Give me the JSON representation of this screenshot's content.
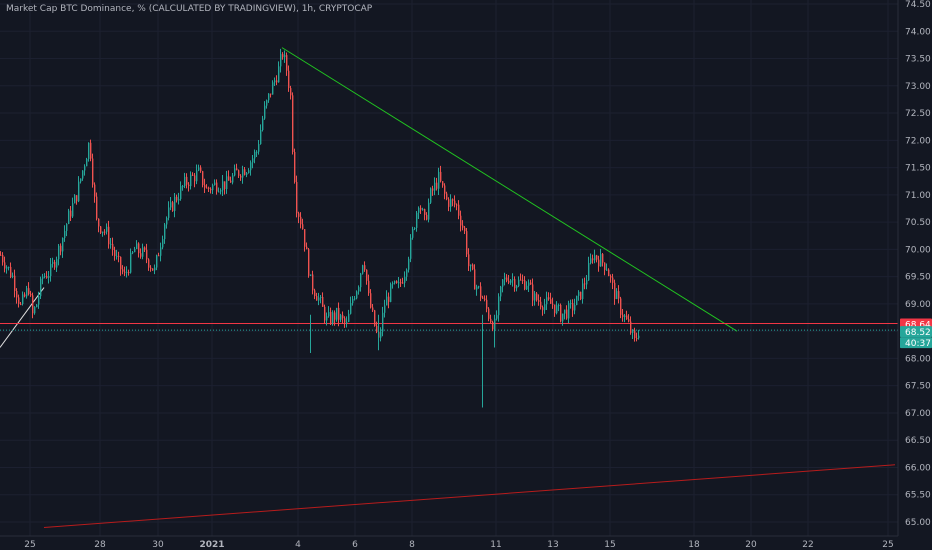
{
  "chart_data": {
    "type": "candlestick",
    "title": "Market Cap BTC Dominance, % (CALCULATED BY TRADINGVIEW), 1h, CRYPTOCAP",
    "xlabel": "",
    "ylabel": "",
    "ylim": [
      64.9,
      74.5
    ],
    "y_ticks": [
      "74.50",
      "74.00",
      "73.50",
      "73.00",
      "72.50",
      "72.00",
      "71.50",
      "71.00",
      "70.50",
      "70.00",
      "69.50",
      "69.00",
      "68.50",
      "68.00",
      "67.50",
      "67.00",
      "66.50",
      "66.00",
      "65.50",
      "65.00"
    ],
    "x_ticks": [
      "25",
      "28",
      "30",
      "2021",
      "4",
      "6",
      "8",
      "11",
      "13",
      "15",
      "18",
      "20",
      "22",
      "25"
    ],
    "grid": true,
    "price_labels": [
      {
        "text": "68.64",
        "value": 68.64,
        "color": "#f23645"
      },
      {
        "text": "68.52",
        "value": 68.52,
        "color": "#26a69a"
      },
      {
        "text": "40:37",
        "value": 68.52,
        "color": "#26a69a"
      }
    ],
    "horizontal_lines": [
      {
        "value": 68.64,
        "color": "#f23645",
        "style": "solid"
      },
      {
        "value": 68.52,
        "color": "#26a69a",
        "style": "dotted"
      }
    ],
    "trend_lines": [
      {
        "from": [
          "Jan 3",
          73.7
        ],
        "to": [
          "Jan 19",
          68.5
        ],
        "color": "#21c421"
      },
      {
        "from": [
          "Dec 25",
          64.9
        ],
        "to": [
          "Jan 25",
          66.05
        ],
        "color": "#b71c1c"
      },
      {
        "from": [
          "Dec 24",
          68.2
        ],
        "to": [
          "Dec 25",
          69.3
        ],
        "color": "#e0e0e0"
      }
    ],
    "series": [
      {
        "path_points": [
          [
            69.9,
            0
          ],
          [
            69.5,
            12
          ],
          [
            68.95,
            20
          ],
          [
            69.3,
            28
          ],
          [
            68.8,
            32
          ],
          [
            69.0,
            36
          ],
          [
            69.5,
            42
          ],
          [
            69.6,
            50
          ],
          [
            70.1,
            60
          ],
          [
            70.6,
            68
          ],
          [
            71.0,
            76
          ],
          [
            71.6,
            84
          ],
          [
            72.0,
            89
          ],
          [
            71.1,
            93
          ],
          [
            70.5,
            96
          ],
          [
            70.3,
            106
          ],
          [
            69.8,
            116
          ],
          [
            69.5,
            124
          ],
          [
            70.0,
            134
          ],
          [
            69.9,
            144
          ],
          [
            69.6,
            154
          ],
          [
            70.5,
            164
          ],
          [
            70.9,
            174
          ],
          [
            71.2,
            184
          ],
          [
            71.3,
            190
          ],
          [
            71.4,
            198
          ],
          [
            71.1,
            206
          ],
          [
            71.2,
            216
          ],
          [
            71.2,
            226
          ],
          [
            71.4,
            236
          ],
          [
            71.5,
            246
          ],
          [
            71.8,
            256
          ],
          [
            72.5,
            263
          ],
          [
            72.9,
            270
          ],
          [
            73.3,
            278
          ],
          [
            73.6,
            282
          ],
          [
            73.3,
            286
          ],
          [
            72.8,
            290
          ],
          [
            71.9,
            292
          ],
          [
            70.8,
            296
          ],
          [
            70.4,
            302
          ],
          [
            69.4,
            310
          ],
          [
            69.1,
            318
          ],
          [
            68.7,
            326
          ],
          [
            68.8,
            336
          ],
          [
            68.6,
            346
          ],
          [
            69.1,
            352
          ],
          [
            69.4,
            358
          ],
          [
            69.9,
            363
          ],
          [
            69.1,
            368
          ],
          [
            68.6,
            374
          ],
          [
            68.3,
            378
          ],
          [
            69.0,
            384
          ],
          [
            69.3,
            392
          ],
          [
            69.3,
            398
          ],
          [
            69.6,
            404
          ],
          [
            70.1,
            410
          ],
          [
            70.9,
            418
          ],
          [
            70.5,
            424
          ],
          [
            71.0,
            430
          ],
          [
            71.3,
            438
          ],
          [
            70.9,
            446
          ],
          [
            70.8,
            456
          ],
          [
            70.3,
            464
          ],
          [
            69.7,
            468
          ],
          [
            69.4,
            474
          ],
          [
            69.1,
            482
          ],
          [
            68.8,
            488
          ],
          [
            68.6,
            494
          ],
          [
            69.4,
            502
          ],
          [
            69.5,
            508
          ],
          [
            69.4,
            516
          ],
          [
            69.4,
            526
          ],
          [
            69.1,
            534
          ],
          [
            69.0,
            544
          ],
          [
            69.0,
            552
          ],
          [
            68.8,
            560
          ],
          [
            68.9,
            570
          ],
          [
            69.1,
            578
          ],
          [
            69.5,
            586
          ],
          [
            69.9,
            592
          ],
          [
            69.8,
            600
          ],
          [
            69.7,
            606
          ],
          [
            69.3,
            612
          ],
          [
            68.9,
            620
          ],
          [
            68.6,
            628
          ],
          [
            68.3,
            634
          ],
          [
            68.52,
            638
          ]
        ],
        "spikes": [
          [
            482,
            67.1
          ],
          [
            310,
            68.1
          ],
          [
            378,
            68.15
          ],
          [
            494,
            68.2
          ],
          [
            562,
            68.6
          ]
        ]
      }
    ]
  }
}
